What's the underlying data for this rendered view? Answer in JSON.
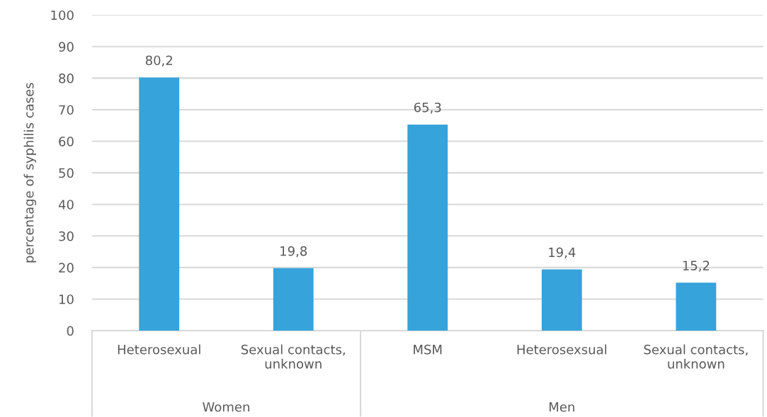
{
  "chart_data": {
    "type": "bar",
    "ylabel": "percentage of syphilis cases",
    "categories": [
      "Heterosexual",
      "Sexual contacts,\nunknown",
      "MSM",
      "Heterosexsual",
      "Sexual contacts,\nunknown"
    ],
    "values": [
      80.2,
      19.8,
      65.3,
      19.4,
      15.2
    ],
    "value_labels": [
      "80,2",
      "19,8",
      "65,3",
      "19,4",
      "15,2"
    ],
    "color": "#36a3db",
    "ylim": [
      0,
      100
    ],
    "yticks": [
      0,
      10,
      20,
      30,
      40,
      50,
      60,
      70,
      80,
      90,
      100
    ],
    "grid": "y",
    "annotations": [
      "Women",
      "Men"
    ]
  }
}
